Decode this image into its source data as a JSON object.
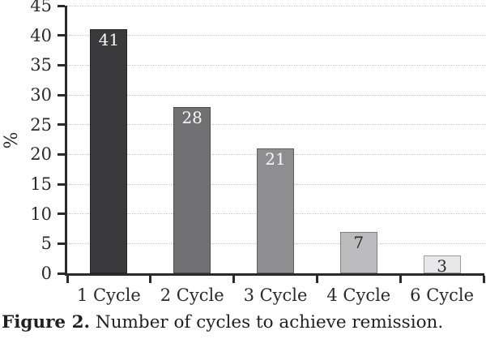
{
  "chart_data": {
    "type": "bar",
    "title": "",
    "categories": [
      "1 Cycle",
      "2 Cycle",
      "3 Cycle",
      "4 Cycle",
      "6 Cycle"
    ],
    "values": [
      41,
      28,
      21,
      7,
      3
    ],
    "bar_labels": [
      "41",
      "28",
      "21",
      "7",
      "3"
    ],
    "xlabel": "",
    "ylabel": "%",
    "ylim": [
      0,
      45
    ],
    "yticks": [
      0,
      5,
      10,
      15,
      20,
      25,
      30,
      35,
      40,
      45
    ],
    "grid": "horizontal-dotted",
    "legend": "none",
    "bar_fill_colors": [
      "#3a393b",
      "#717173",
      "#8e8e90",
      "#bcbcbe",
      "#e8e8ea"
    ],
    "bar_label_colors": [
      "#fafafa",
      "#fafafa",
      "#fafafa",
      "#2a2a2a",
      "#2a2a2a"
    ]
  },
  "colors": {
    "axis": "#2a2a2a",
    "gridline": "#c6c6c6",
    "background": "#ffffff",
    "caption_text": "#231f20"
  },
  "caption": {
    "prefix": "Figure 2.",
    "text": " Number of cycles to achieve remission."
  }
}
